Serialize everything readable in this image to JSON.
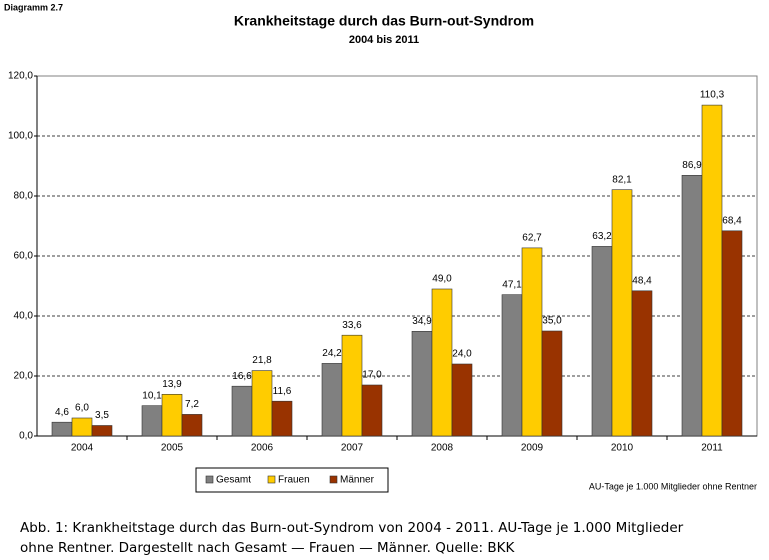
{
  "chart_data": {
    "type": "bar",
    "label": "Diagramm 2.7",
    "title": "Krankheitstage durch das Burn-out-Syndrom",
    "subtitle": "2004 bis 2011",
    "note": "AU-Tage je 1.000 Mitglieder ohne Rentner",
    "categories": [
      "2004",
      "2005",
      "2006",
      "2007",
      "2008",
      "2009",
      "2010",
      "2011"
    ],
    "series": [
      {
        "name": "Gesamt",
        "color": "#808080",
        "values": [
          4.6,
          10.1,
          16.6,
          24.2,
          34.9,
          47.1,
          63.2,
          86.9
        ],
        "value_labels": [
          "4,6",
          "10,1",
          "16,6",
          "24,2",
          "34,9",
          "47,1",
          "63,2",
          "86,9"
        ]
      },
      {
        "name": "Frauen",
        "color": "#ffcc00",
        "values": [
          6.0,
          13.9,
          21.8,
          33.6,
          49.0,
          62.7,
          82.1,
          110.3
        ],
        "value_labels": [
          "6,0",
          "13,9",
          "21,8",
          "33,6",
          "49,0",
          "62,7",
          "82,1",
          "110,3"
        ]
      },
      {
        "name": "Männer",
        "color": "#993300",
        "values": [
          3.5,
          7.2,
          11.6,
          17.0,
          24.0,
          35.0,
          48.4,
          68.4
        ],
        "value_labels": [
          "3,5",
          "7,2",
          "11,6",
          "17,0",
          "24,0",
          "35,0",
          "48,4",
          "68,4"
        ]
      }
    ],
    "ylim": [
      0,
      120
    ],
    "yticks": [
      {
        "value": 0,
        "label": "0,0"
      },
      {
        "value": 20,
        "label": "20,0"
      },
      {
        "value": 40,
        "label": "40,0"
      },
      {
        "value": 60,
        "label": "60,0"
      },
      {
        "value": 80,
        "label": "80,0"
      },
      {
        "value": 100,
        "label": "100,0"
      },
      {
        "value": 120,
        "label": "120,0"
      }
    ],
    "grid": true,
    "legend": "bottom"
  },
  "caption": [
    "Abb. 1: Krankheitstage durch das Burn-out-Syndrom von 2004 - 2011. AU-Tage je 1.000 Mitglieder",
    "ohne Rentner. Dargestellt nach Gesamt — Frauen — Männer. Quelle: BKK"
  ]
}
